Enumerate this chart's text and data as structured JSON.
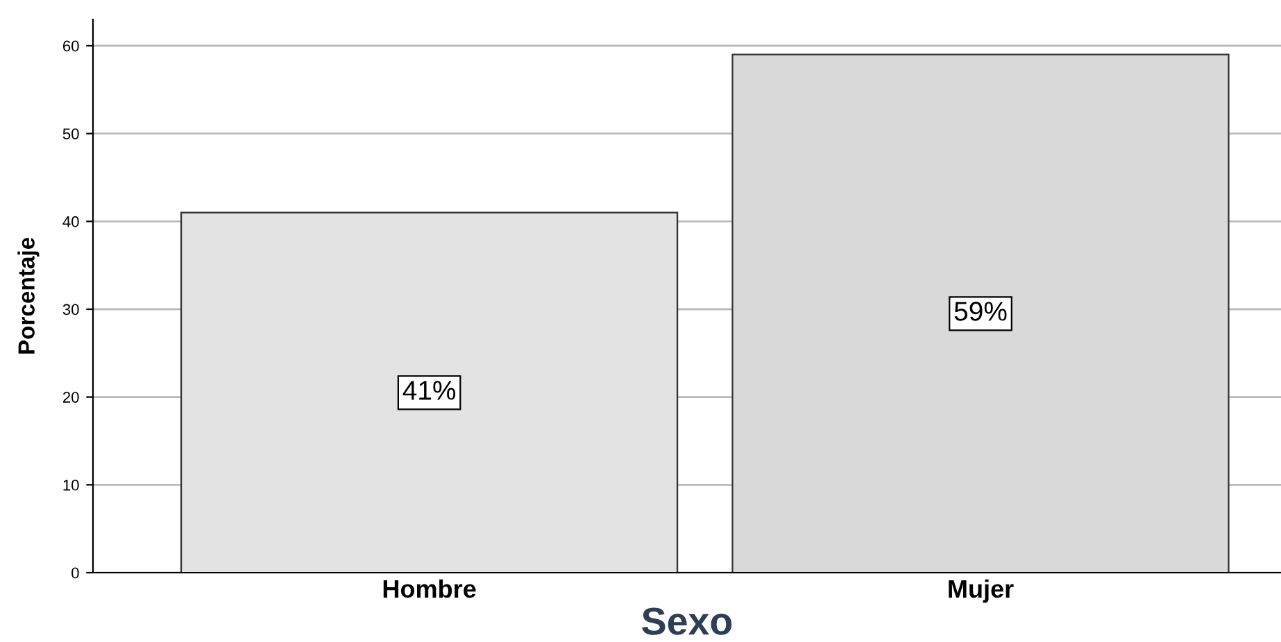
{
  "chart_data": {
    "type": "bar",
    "xlabel": "Sexo",
    "ylabel": "Porcentaje",
    "categories": [
      "Hombre",
      "Mujer"
    ],
    "values": [
      41,
      59
    ],
    "colors": [
      "#e3e3e3",
      "#d9d9d9"
    ],
    "value_labels": [
      "41%",
      "59%"
    ],
    "ylim": [
      0,
      63
    ],
    "yticks": [
      0,
      10,
      20,
      30,
      40,
      50,
      60
    ],
    "grid": "y"
  }
}
